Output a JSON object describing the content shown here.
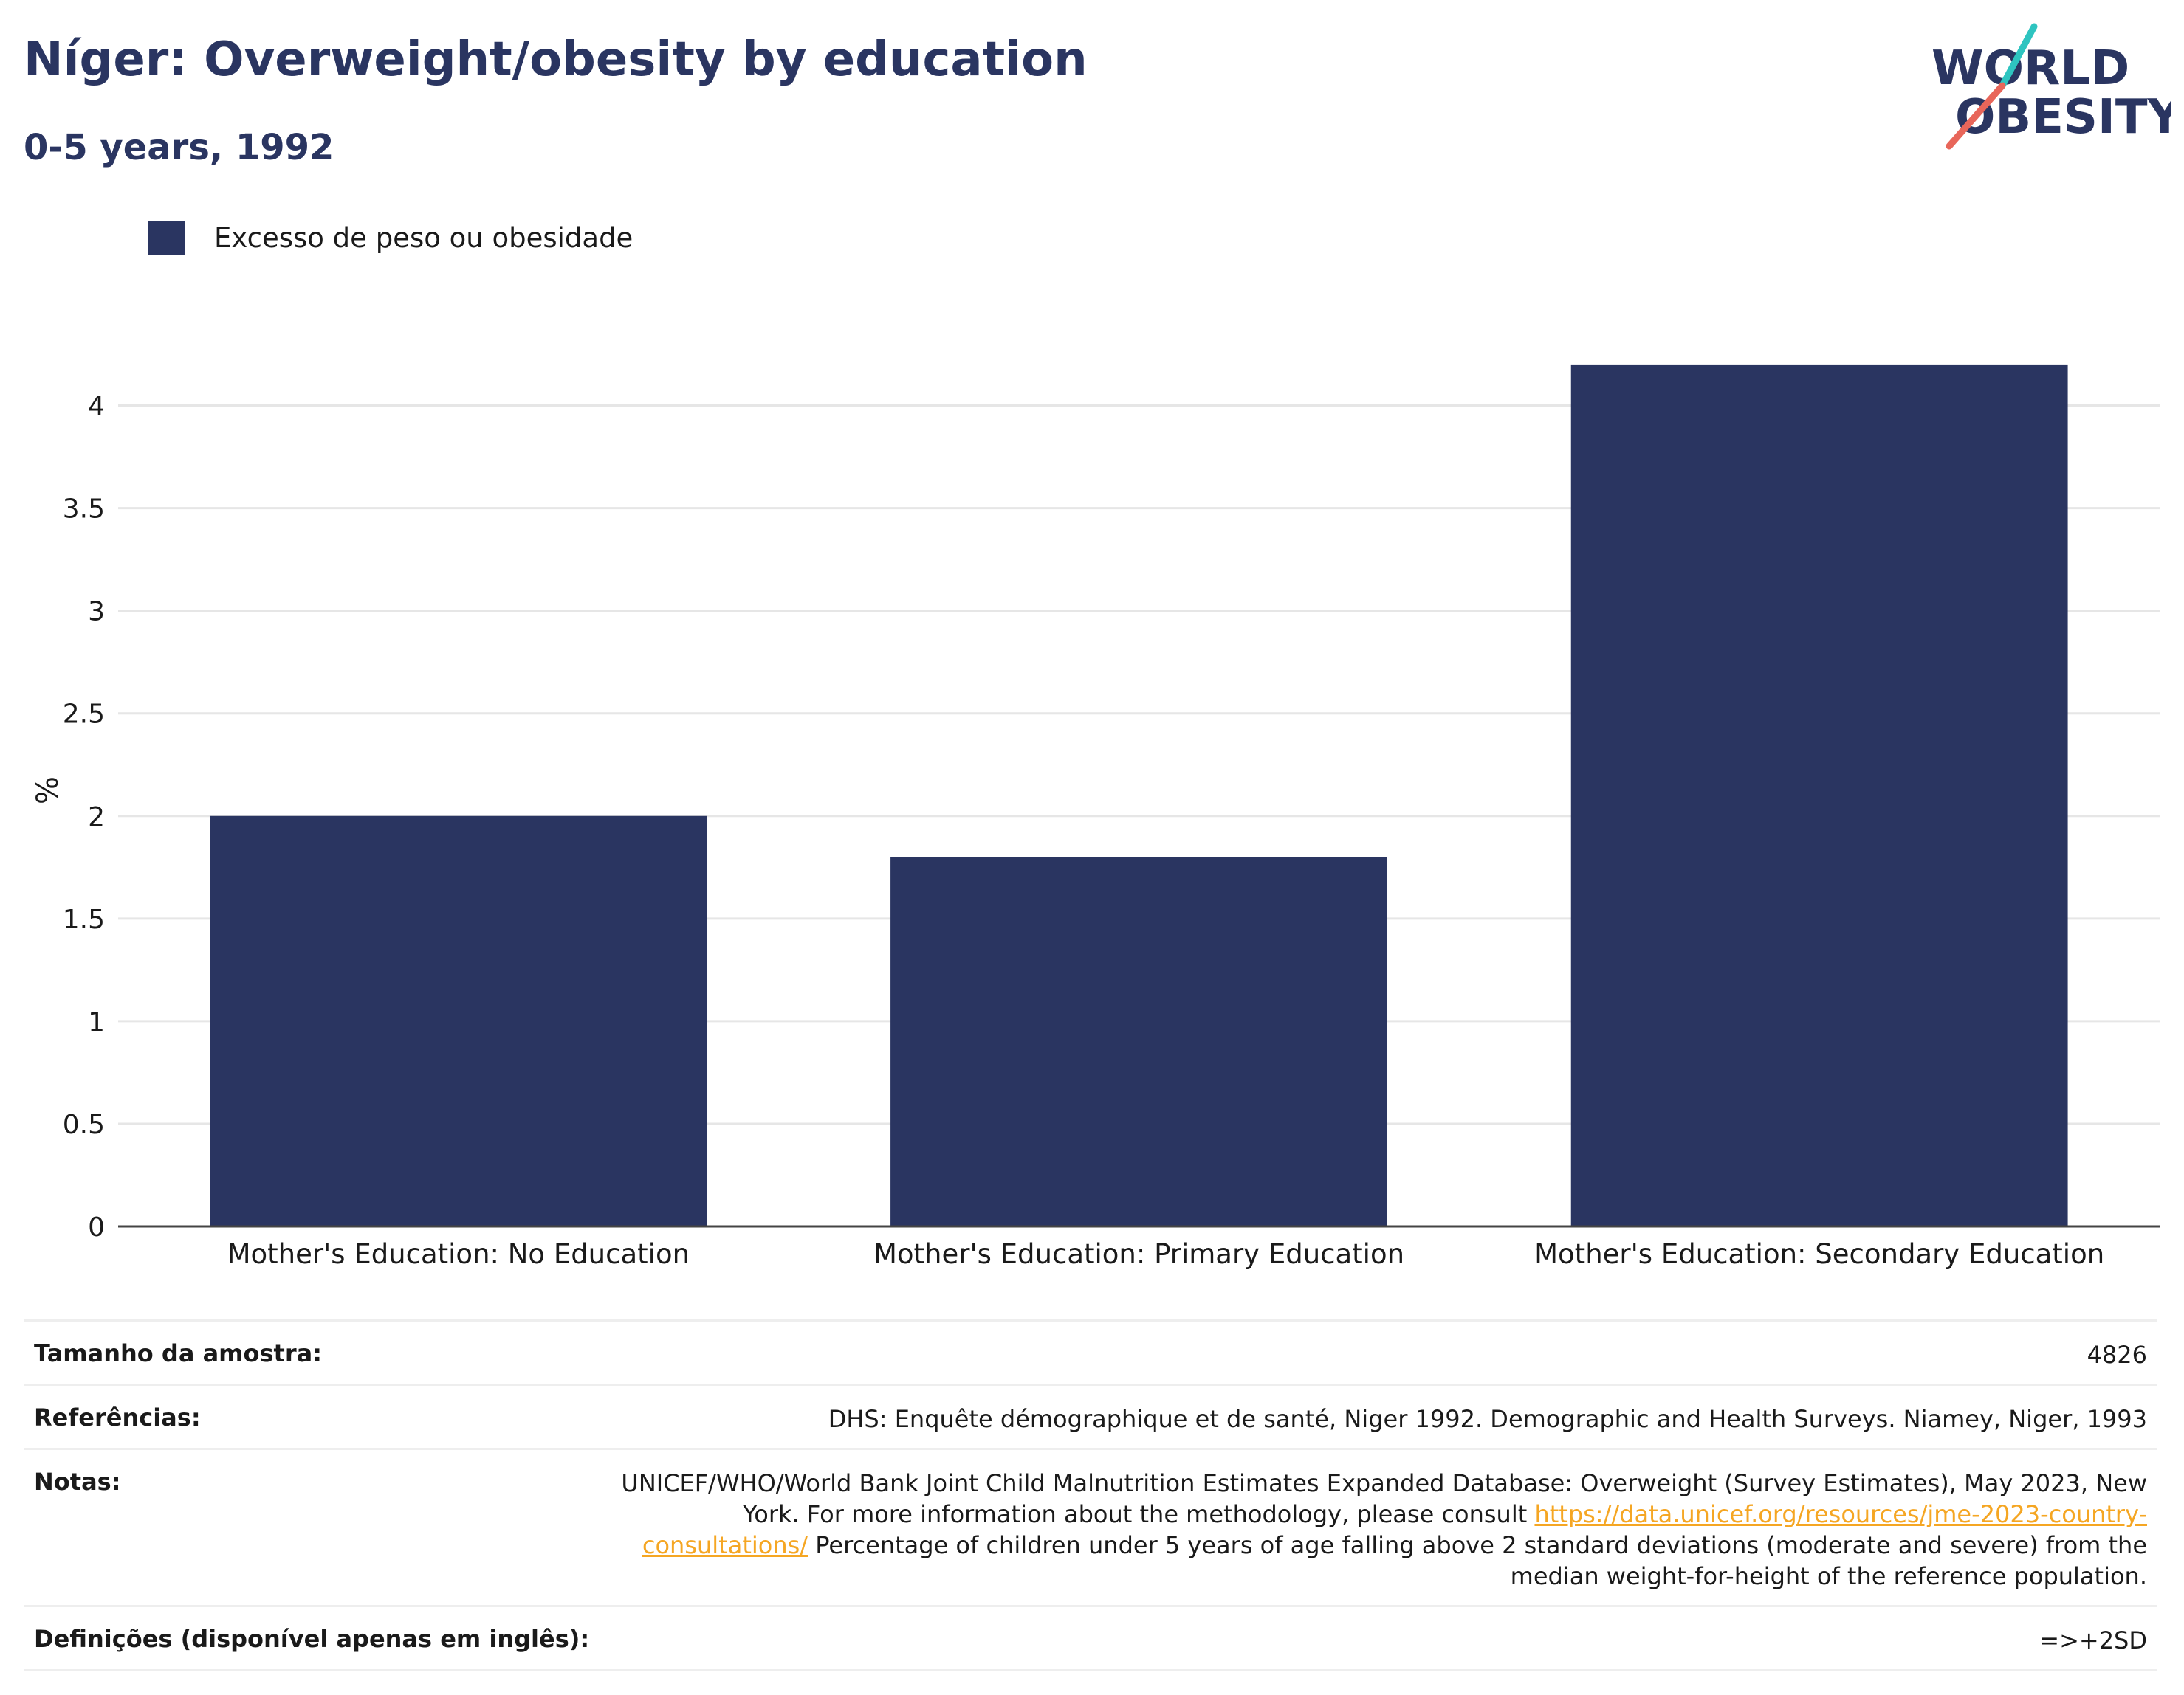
{
  "header": {
    "title": "Níger: Overweight/obesity by education",
    "subtitle": "0-5 years, 1992"
  },
  "logo": {
    "line1": "WORLD",
    "line2": "OBESITY",
    "text_color": "#2a3561",
    "accent_teal": "#2ec4c0",
    "accent_red": "#e8665a"
  },
  "legend": {
    "label": "Excesso de peso ou obesidade",
    "color": "#2a3561"
  },
  "chart_data": {
    "type": "bar",
    "categories": [
      "Mother's Education: No Education",
      "Mother's Education: Primary Education",
      "Mother's Education: Secondary Education"
    ],
    "series": [
      {
        "name": "Excesso de peso ou obesidade",
        "values": [
          2.0,
          1.8,
          4.2
        ]
      }
    ],
    "ylabel": "%",
    "xlabel": "",
    "ylim": [
      0,
      4.25
    ],
    "yticks": [
      0,
      0.5,
      1,
      1.5,
      2,
      2.5,
      3,
      3.5,
      4
    ],
    "ytick_labels": [
      "0",
      "0.5",
      "1",
      "1.5",
      "2",
      "2.5",
      "3",
      "3.5",
      "4"
    ],
    "grid": true,
    "bar_color": "#2a3561",
    "legend_position": "top-left"
  },
  "footer": {
    "sample_label": "Tamanho da amostra:",
    "sample_value": "4826",
    "references_label": "Referências:",
    "references_value": "DHS: Enquête démographique et de santé, Niger 1992. Demographic and Health Surveys. Niamey, Niger, 1993",
    "notes_label": "Notas:",
    "notes_text_before": "UNICEF/WHO/World Bank Joint Child Malnutrition Estimates Expanded Database: Overweight (Survey Estimates), May 2023, New York. For more information about the methodology, please consult ",
    "notes_link": "https://data.unicef.org/resources/jme-2023-country-consultations/",
    "notes_text_after": " Percentage of children under 5 years of age falling above 2 standard deviations (moderate and severe) from the median weight-for-height of the reference population.",
    "definitions_label": "Definições (disponível apenas em inglês):",
    "definitions_value": "=>+2SD"
  }
}
